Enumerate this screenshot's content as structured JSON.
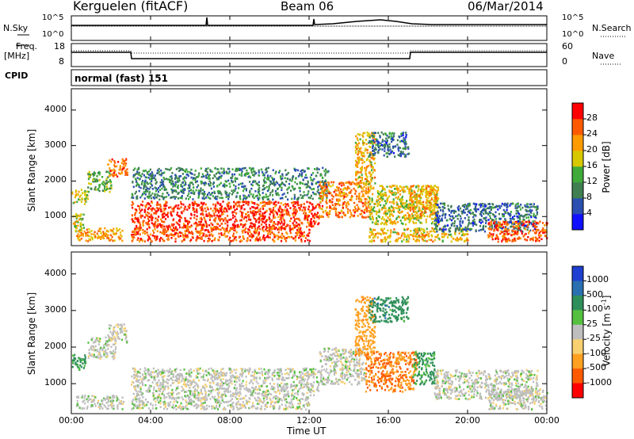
{
  "header": {
    "station": "Kerguelen (fitACF)",
    "beam": "Beam 06",
    "date": "06/Mar/2014"
  },
  "top_panels": {
    "nsky_label": "N.Sky",
    "nsky_ticks": [
      "10^5",
      "10^0"
    ],
    "nsearch_label": "N.Search",
    "nsearch_ticks": [
      "10^5",
      "10^0"
    ],
    "freq_label": "Freq.",
    "freq_unit": "[MHz]",
    "freq_ticks": [
      "18",
      "8"
    ],
    "nave_label": "Nave",
    "nave_ticks": [
      "60",
      "0"
    ],
    "cpid_label": "CPID",
    "cpid_value": "normal (fast) 151"
  },
  "chart_data": [
    {
      "type": "heatmap",
      "parameter": "Power",
      "ylabel": "Slant Range [km]",
      "xlabel": "Time UT",
      "xlim_hours": [
        0,
        24
      ],
      "ylim_km": [
        180,
        4600
      ],
      "yticks": [
        1000,
        2000,
        3000,
        4000
      ],
      "colorbar_label": "Power [dB]",
      "colorbar_ticks": [
        "4",
        "8",
        "12",
        "16",
        "20",
        "24",
        "28"
      ],
      "colorbar_colors": [
        "#1010ff",
        "#2a4fb0",
        "#3f7f52",
        "#3faa3a",
        "#d8c800",
        "#ff9a00",
        "#ff5a00",
        "#ff0000"
      ],
      "scatter_regions": [
        {
          "t0": 0.0,
          "t1": 0.8,
          "r0": 1380,
          "r1": 1820,
          "value": 18
        },
        {
          "t0": 0.0,
          "t1": 0.6,
          "r0": 600,
          "r1": 1100,
          "value": 16
        },
        {
          "t0": 0.8,
          "t1": 2.0,
          "r0": 1700,
          "r1": 2300,
          "value": 14
        },
        {
          "t0": 1.8,
          "t1": 2.8,
          "r0": 2150,
          "r1": 2650,
          "value": 24
        },
        {
          "t0": 0.2,
          "t1": 2.6,
          "r0": 330,
          "r1": 700,
          "value": 22
        },
        {
          "t0": 3.0,
          "t1": 12.5,
          "r0": 700,
          "r1": 1450,
          "value": 28
        },
        {
          "t0": 3.0,
          "t1": 12.0,
          "r0": 320,
          "r1": 700,
          "value": 26
        },
        {
          "t0": 3.0,
          "t1": 13.0,
          "r0": 1500,
          "r1": 2400,
          "value": 10
        },
        {
          "t0": 12.5,
          "t1": 15.0,
          "r0": 1000,
          "r1": 2000,
          "value": 24
        },
        {
          "t0": 14.3,
          "t1": 15.3,
          "r0": 1800,
          "r1": 3400,
          "value": 20
        },
        {
          "t0": 15.0,
          "t1": 17.0,
          "r0": 2700,
          "r1": 3400,
          "value": 8
        },
        {
          "t0": 15.0,
          "t1": 18.5,
          "r0": 800,
          "r1": 1900,
          "value": 18
        },
        {
          "t0": 17.0,
          "t1": 18.5,
          "r0": 1000,
          "r1": 1900,
          "value": 22
        },
        {
          "t0": 15.0,
          "t1": 20.0,
          "r0": 320,
          "r1": 700,
          "value": 20
        },
        {
          "t0": 18.3,
          "t1": 23.5,
          "r0": 600,
          "r1": 1400,
          "value": 8
        },
        {
          "t0": 21.0,
          "t1": 24.0,
          "r0": 320,
          "r1": 900,
          "value": 26
        }
      ]
    },
    {
      "type": "heatmap",
      "parameter": "Velocity",
      "ylabel": "Slant Range [km]",
      "xlabel": "Time UT",
      "xlim_hours": [
        0,
        24
      ],
      "ylim_km": [
        180,
        4600
      ],
      "yticks": [
        1000,
        2000,
        3000,
        4000
      ],
      "colorbar_label": "Velocity [m s",
      "colorbar_label_sup": "-1",
      "colorbar_label_end": "]",
      "colorbar_ticks": [
        "1000",
        "500",
        "100",
        "25",
        "-25",
        "-100",
        "-500",
        "-1000"
      ],
      "colorbar_colors": [
        "#1f3fd0",
        "#2a6fb0",
        "#2f8f5a",
        "#55c040",
        "#bebebe",
        "#f8d070",
        "#ffa020",
        "#ff5a00",
        "#ff0000"
      ],
      "scatter_regions": [
        {
          "t0": 0.0,
          "t1": 0.8,
          "r0": 1380,
          "r1": 1820,
          "value": 200
        },
        {
          "t0": 0.8,
          "t1": 2.2,
          "r0": 1700,
          "r1": 2300,
          "value": 0
        },
        {
          "t0": 1.8,
          "t1": 2.8,
          "r0": 2150,
          "r1": 2650,
          "value": 0
        },
        {
          "t0": 0.2,
          "t1": 2.6,
          "r0": 330,
          "r1": 700,
          "value": 0
        },
        {
          "t0": 3.0,
          "t1": 12.5,
          "r0": 700,
          "r1": 1450,
          "value": 0
        },
        {
          "t0": 3.0,
          "t1": 12.0,
          "r0": 320,
          "r1": 700,
          "value": 0
        },
        {
          "t0": 12.5,
          "t1": 14.8,
          "r0": 1000,
          "r1": 2000,
          "value": 0
        },
        {
          "t0": 14.3,
          "t1": 15.3,
          "r0": 1800,
          "r1": 3400,
          "value": -300
        },
        {
          "t0": 15.0,
          "t1": 17.0,
          "r0": 2700,
          "r1": 3400,
          "value": 300
        },
        {
          "t0": 14.8,
          "t1": 17.4,
          "r0": 800,
          "r1": 1900,
          "value": -500
        },
        {
          "t0": 17.2,
          "t1": 18.3,
          "r0": 1000,
          "r1": 1900,
          "value": 150
        },
        {
          "t0": 18.3,
          "t1": 23.5,
          "r0": 600,
          "r1": 1400,
          "value": 0
        },
        {
          "t0": 21.0,
          "t1": 24.0,
          "r0": 320,
          "r1": 900,
          "value": 0
        }
      ]
    }
  ],
  "xticks": [
    "00:00",
    "04:00",
    "08:00",
    "12:00",
    "16:00",
    "20:00",
    "00:00"
  ]
}
